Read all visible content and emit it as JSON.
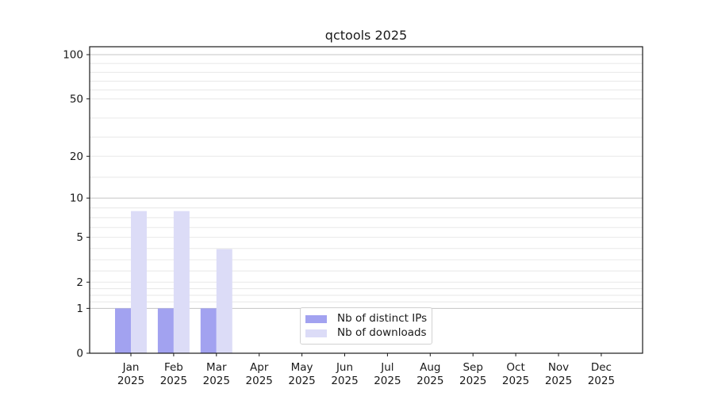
{
  "chart_data": {
    "type": "bar",
    "title": "qctools 2025",
    "categories": [
      "Jan",
      "Feb",
      "Mar",
      "Apr",
      "May",
      "Jun",
      "Jul",
      "Aug",
      "Sep",
      "Oct",
      "Nov",
      "Dec"
    ],
    "x_year_label": "2025",
    "series": [
      {
        "key": "distinct-ips",
        "name": "Nb of distinct IPs",
        "color": "#a2a2f0",
        "values": [
          1,
          1,
          1,
          0,
          0,
          0,
          0,
          0,
          0,
          0,
          0,
          0
        ]
      },
      {
        "key": "downloads",
        "name": "Nb of downloads",
        "color": "#dcdcf7",
        "values": [
          8,
          8,
          4,
          0,
          0,
          0,
          0,
          0,
          0,
          0,
          0,
          0
        ]
      }
    ],
    "y_ticks": [
      0,
      1,
      2,
      5,
      10,
      20,
      50,
      100
    ],
    "y_scale": "log10(1+v)",
    "ylim": [
      0,
      115
    ],
    "xlabel": "",
    "ylabel": "",
    "grid": true,
    "legend_position": "lower center inside"
  }
}
